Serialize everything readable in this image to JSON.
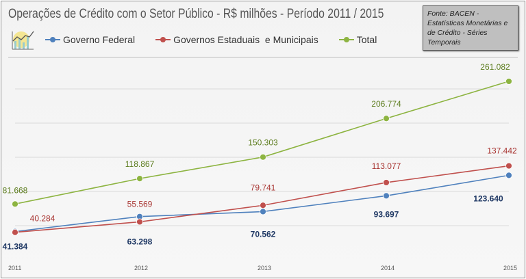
{
  "title": "Operações de Crédito com o Setor Público - R$ milhões - Período 2011 / 2015",
  "source": "Fonte: BACEN - Estatísticas Monetárias e de Crédito - Séries Temporais",
  "colors": {
    "governo_federal": "#4f81bd",
    "estaduais_municipais": "#c0504d",
    "total": "#8db441"
  },
  "chart_data": {
    "type": "line",
    "title": "Operações de Crédito com o Setor Público - R$ milhões - Período 2011 / 2015",
    "categories": [
      "2011",
      "2012",
      "2013",
      "2014",
      "2015"
    ],
    "ylim": [
      0,
      300000
    ],
    "grid": true,
    "legend_position": "top",
    "series": [
      {
        "name": "Governo Federal",
        "values": [
          41384,
          63298,
          70562,
          93697,
          123640
        ],
        "labels": [
          "41.384",
          "63.298",
          "70.562",
          "93.697",
          "123.640"
        ]
      },
      {
        "name": "Governos Estaduais  e Municipais",
        "values": [
          40284,
          55569,
          79741,
          113077,
          137442
        ],
        "labels": [
          "40.284",
          "55.569",
          "79.741",
          "113.077",
          "137.442"
        ]
      },
      {
        "name": "Total",
        "values": [
          81668,
          118867,
          150303,
          206774,
          261082
        ],
        "labels": [
          "81.668",
          "118.867",
          "150.303",
          "206.774",
          "261.082"
        ]
      }
    ]
  }
}
